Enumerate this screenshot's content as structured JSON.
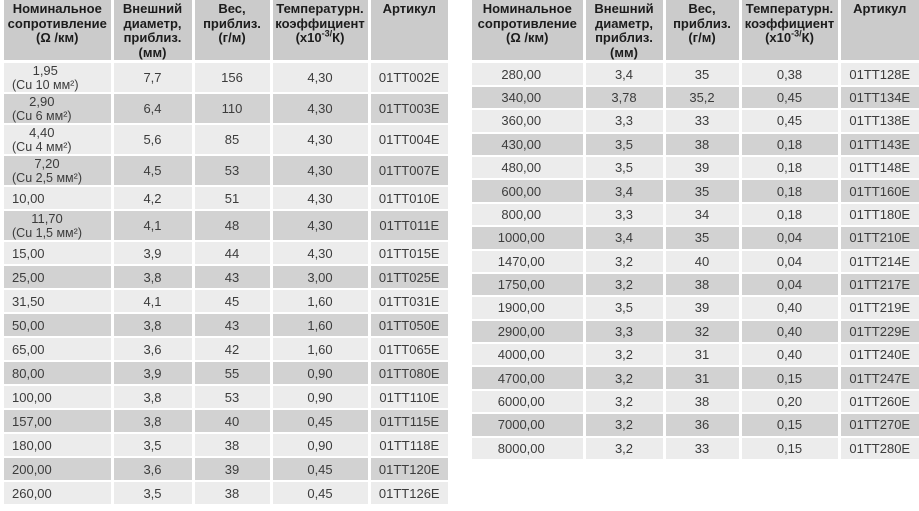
{
  "colors": {
    "header_bg": "#cbcbcb",
    "row_light": "#ececec",
    "row_dark": "#d2d2d2",
    "text": "#3c3c3c",
    "header_text": "#1c1c1c",
    "separator": "#ffffff"
  },
  "header": {
    "resistance": "Номинальное\nсопротивление\n(Ω /км)",
    "diameter": "Внешний\nдиаметр,\nприблиз.\n(мм)",
    "weight": "Вес,\nприблиз.\n(г/м)",
    "tcoeff_line1": "Температурн.",
    "tcoeff_line2": "коэффициент",
    "tcoeff_base": "(x10",
    "tcoeff_sup": "-3/",
    "tcoeff_tail": "К)",
    "article": "Артикул"
  },
  "tables": {
    "left": {
      "rows": [
        {
          "res": "1,95",
          "note": "(Cu 10 мм²)",
          "dia": "7,7",
          "wt": "156",
          "tc": "4,30",
          "art": "01TT002E"
        },
        {
          "res": "2,90",
          "note": "(Cu 6 мм²)",
          "dia": "6,4",
          "wt": "110",
          "tc": "4,30",
          "art": "01TT003E"
        },
        {
          "res": "4,40",
          "note": "(Cu 4 мм²)",
          "dia": "5,6",
          "wt": "85",
          "tc": "4,30",
          "art": "01TT004E"
        },
        {
          "res": "7,20",
          "note": "(Cu 2,5 мм²)",
          "dia": "4,5",
          "wt": "53",
          "tc": "4,30",
          "art": "01TT007E"
        },
        {
          "res": "10,00",
          "dia": "4,2",
          "wt": "51",
          "tc": "4,30",
          "art": "01TT010E"
        },
        {
          "res": "11,70",
          "note": "(Cu 1,5 мм²)",
          "dia": "4,1",
          "wt": "48",
          "tc": "4,30",
          "art": "01TT011E"
        },
        {
          "res": "15,00",
          "dia": "3,9",
          "wt": "44",
          "tc": "4,30",
          "art": "01TT015E"
        },
        {
          "res": "25,00",
          "dia": "3,8",
          "wt": "43",
          "tc": "3,00",
          "art": "01TT025E"
        },
        {
          "res": "31,50",
          "dia": "4,1",
          "wt": "45",
          "tc": "1,60",
          "art": "01TT031E"
        },
        {
          "res": "50,00",
          "dia": "3,8",
          "wt": "43",
          "tc": "1,60",
          "art": "01TT050E"
        },
        {
          "res": "65,00",
          "dia": "3,6",
          "wt": "42",
          "tc": "1,60",
          "art": "01TT065E"
        },
        {
          "res": "80,00",
          "dia": "3,9",
          "wt": "55",
          "tc": "0,90",
          "art": "01TT080E"
        },
        {
          "res": "100,00",
          "dia": "3,8",
          "wt": "53",
          "tc": "0,90",
          "art": "01TT110E"
        },
        {
          "res": "157,00",
          "dia": "3,8",
          "wt": "40",
          "tc": "0,45",
          "art": "01TT115E"
        },
        {
          "res": "180,00",
          "dia": "3,5",
          "wt": "38",
          "tc": "0,90",
          "art": "01TT118E"
        },
        {
          "res": "200,00",
          "dia": "3,6",
          "wt": "39",
          "tc": "0,45",
          "art": "01TT120E"
        },
        {
          "res": "260,00",
          "dia": "3,5",
          "wt": "38",
          "tc": "0,45",
          "art": "01TT126E"
        }
      ]
    },
    "right": {
      "rows": [
        {
          "res": "280,00",
          "dia": "3,4",
          "wt": "35",
          "tc": "0,38",
          "art": "01TT128E"
        },
        {
          "res": "340,00",
          "dia": "3,78",
          "wt": "35,2",
          "tc": "0,45",
          "art": "01TT134E"
        },
        {
          "res": "360,00",
          "dia": "3,3",
          "wt": "33",
          "tc": "0,45",
          "art": "01TT138E"
        },
        {
          "res": "430,00",
          "dia": "3,5",
          "wt": "38",
          "tc": "0,18",
          "art": "01TT143E"
        },
        {
          "res": "480,00",
          "dia": "3,5",
          "wt": "39",
          "tc": "0,18",
          "art": "01TT148E"
        },
        {
          "res": "600,00",
          "dia": "3,4",
          "wt": "35",
          "tc": "0,18",
          "art": "01TT160E"
        },
        {
          "res": "800,00",
          "dia": "3,3",
          "wt": "34",
          "tc": "0,18",
          "art": "01TT180E"
        },
        {
          "res": "1000,00",
          "dia": "3,4",
          "wt": "35",
          "tc": "0,04",
          "art": "01TT210E"
        },
        {
          "res": "1470,00",
          "dia": "3,2",
          "wt": "40",
          "tc": "0,04",
          "art": "01TT214E"
        },
        {
          "res": "1750,00",
          "dia": "3,2",
          "wt": "38",
          "tc": "0,04",
          "art": "01TT217E"
        },
        {
          "res": "1900,00",
          "dia": "3,5",
          "wt": "39",
          "tc": "0,40",
          "art": "01TT219E"
        },
        {
          "res": "2900,00",
          "dia": "3,3",
          "wt": "32",
          "tc": "0,40",
          "art": "01TT229E"
        },
        {
          "res": "4000,00",
          "dia": "3,2",
          "wt": "31",
          "tc": "0,40",
          "art": "01TT240E"
        },
        {
          "res": "4700,00",
          "dia": "3,2",
          "wt": "31",
          "tc": "0,15",
          "art": "01TT247E"
        },
        {
          "res": "6000,00",
          "dia": "3,2",
          "wt": "38",
          "tc": "0,20",
          "art": "01TT260E"
        },
        {
          "res": "7000,00",
          "dia": "3,2",
          "wt": "36",
          "tc": "0,15",
          "art": "01TT270E"
        },
        {
          "res": "8000,00",
          "dia": "3,2",
          "wt": "33",
          "tc": "0,15",
          "art": "01TT280E"
        }
      ]
    }
  }
}
